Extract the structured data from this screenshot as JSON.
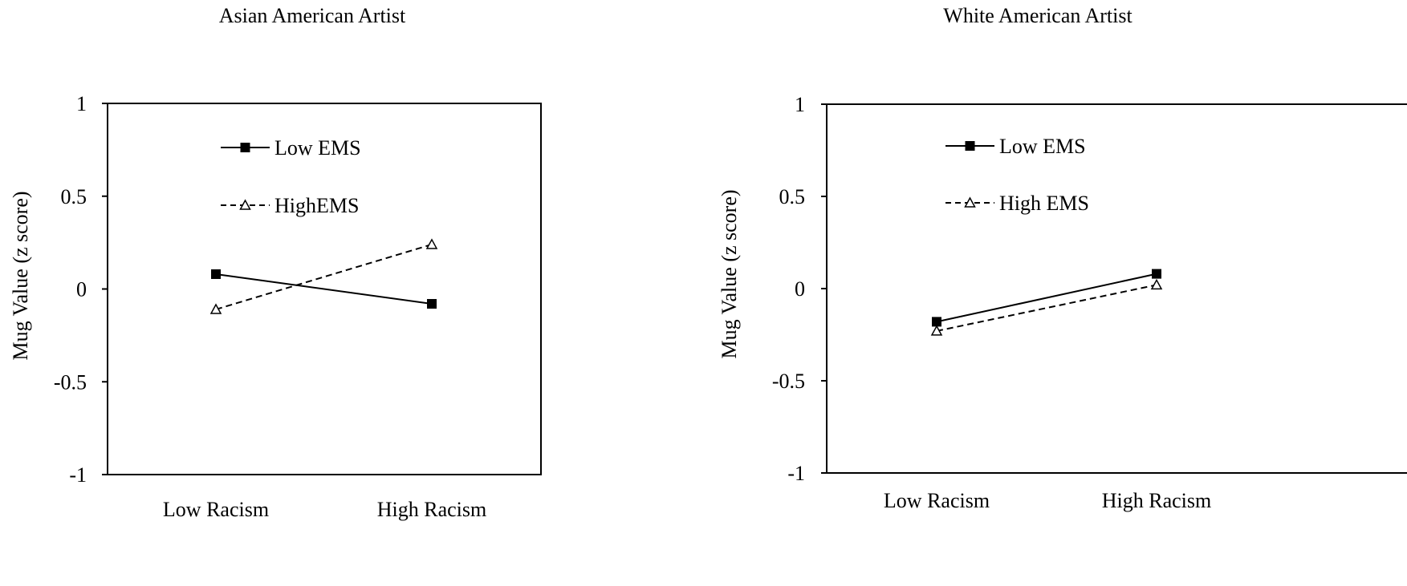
{
  "chart_data": [
    {
      "type": "line",
      "title": "Asian American Artist",
      "xlabel": "",
      "ylabel": "Mug Value (z score)",
      "ylim": [
        -1,
        1
      ],
      "yticks": [
        "1",
        "0.5",
        "0",
        "-0.5",
        "-1"
      ],
      "categories": [
        "Low Racism",
        "High Racism"
      ],
      "grid": false,
      "legend_position": "top-left",
      "series": [
        {
          "name": "Low EMS",
          "values": [
            0.08,
            -0.08
          ],
          "line": "solid",
          "marker": "filled-square"
        },
        {
          "name": "HighEMS",
          "values": [
            -0.11,
            0.24
          ],
          "line": "dashed",
          "marker": "open-triangle"
        }
      ]
    },
    {
      "type": "line",
      "title": "White American Artist",
      "xlabel": "",
      "ylabel": "Mug Value (z score)",
      "ylim": [
        -1,
        1
      ],
      "yticks": [
        "1",
        "0.5",
        "0",
        "-0.5",
        "-1"
      ],
      "categories": [
        "Low Racism",
        "High Racism"
      ],
      "grid": false,
      "legend_position": "top-left",
      "series": [
        {
          "name": "Low EMS",
          "values": [
            -0.18,
            0.08
          ],
          "line": "solid",
          "marker": "filled-square"
        },
        {
          "name": "High EMS",
          "values": [
            -0.23,
            0.02
          ],
          "line": "dashed",
          "marker": "open-triangle"
        }
      ]
    }
  ]
}
